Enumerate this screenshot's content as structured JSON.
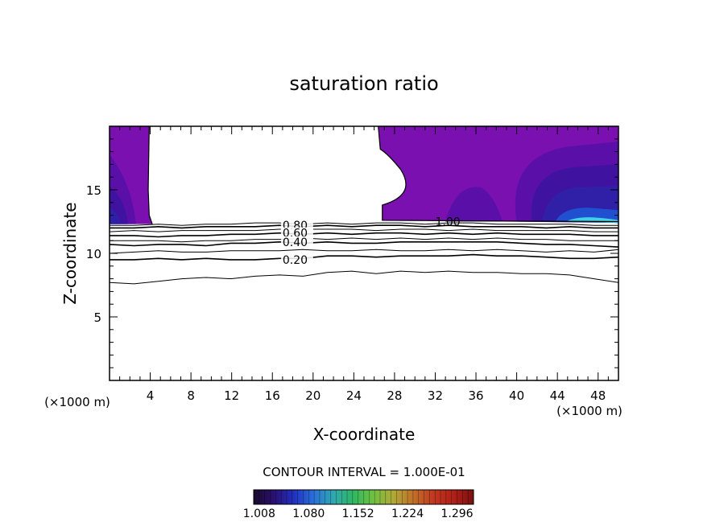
{
  "chart_data": {
    "type": "contour",
    "title": "saturation ratio",
    "xlabel": "X-coordinate",
    "ylabel": "Z-coordinate",
    "x_unit_label": "(×1000 m)",
    "x_unit_label_corner": "(×1000 m)",
    "xlim": [
      0,
      50
    ],
    "ylim": [
      0,
      20
    ],
    "x_ticks": [
      4,
      8,
      12,
      16,
      20,
      24,
      28,
      32,
      36,
      40,
      44,
      48
    ],
    "y_ticks": [
      5,
      10,
      15
    ],
    "contour_interval_text": "CONTOUR INTERVAL = 1.000E-01",
    "contour_labels": [
      {
        "text": "0.80",
        "x": 17,
        "z": 12.2
      },
      {
        "text": "0.60",
        "x": 17,
        "z": 11.6
      },
      {
        "text": "0.40",
        "x": 17,
        "z": 10.9
      },
      {
        "text": "0.20",
        "x": 17,
        "z": 9.5
      },
      {
        "text": "1.00",
        "x": 32,
        "z": 12.5
      }
    ],
    "contour_lines": [
      {
        "level": 0.1,
        "z": [
          7.7,
          7.6,
          7.8,
          8.0,
          8.1,
          8.0,
          8.2,
          8.3,
          8.2,
          8.5,
          8.6,
          8.4,
          8.6,
          8.5,
          8.6,
          8.5,
          8.5,
          8.4,
          8.4,
          8.3,
          8.0,
          7.7
        ]
      },
      {
        "level": 0.2,
        "z": [
          9.5,
          9.5,
          9.6,
          9.5,
          9.6,
          9.5,
          9.5,
          9.6,
          9.6,
          9.8,
          9.8,
          9.7,
          9.8,
          9.8,
          9.8,
          9.9,
          9.8,
          9.8,
          9.7,
          9.6,
          9.6,
          9.7
        ]
      },
      {
        "level": 0.3,
        "z": [
          10.0,
          10.1,
          10.2,
          10.1,
          10.1,
          10.2,
          10.2,
          10.2,
          10.3,
          10.2,
          10.2,
          10.3,
          10.2,
          10.2,
          10.3,
          10.2,
          10.3,
          10.2,
          10.1,
          10.2,
          10.1,
          10.3
        ]
      },
      {
        "level": 0.4,
        "z": [
          10.7,
          10.6,
          10.7,
          10.7,
          10.6,
          10.8,
          10.8,
          10.9,
          10.8,
          10.9,
          10.8,
          10.8,
          10.9,
          10.9,
          10.9,
          10.9,
          10.9,
          10.8,
          10.7,
          10.7,
          10.6,
          10.5
        ]
      },
      {
        "level": 0.5,
        "z": [
          11.0,
          11.0,
          11.0,
          10.9,
          11.0,
          11.0,
          11.1,
          11.1,
          11.2,
          11.1,
          11.2,
          11.1,
          11.2,
          11.1,
          11.2,
          11.1,
          11.2,
          11.1,
          11.1,
          11.0,
          11.0,
          11.0
        ]
      },
      {
        "level": 0.6,
        "z": [
          11.4,
          11.4,
          11.3,
          11.4,
          11.4,
          11.5,
          11.5,
          11.6,
          11.5,
          11.6,
          11.5,
          11.6,
          11.6,
          11.5,
          11.6,
          11.5,
          11.6,
          11.5,
          11.5,
          11.5,
          11.4,
          11.4
        ]
      },
      {
        "level": 0.7,
        "z": [
          11.7,
          11.8,
          11.7,
          11.8,
          11.8,
          11.8,
          11.8,
          11.9,
          11.9,
          11.9,
          11.9,
          11.8,
          11.9,
          11.9,
          11.8,
          11.9,
          11.8,
          11.8,
          11.8,
          11.8,
          11.7,
          11.7
        ]
      },
      {
        "level": 0.8,
        "z": [
          12.0,
          12.0,
          12.1,
          12.0,
          12.1,
          12.1,
          12.1,
          12.2,
          12.1,
          12.2,
          12.1,
          12.2,
          12.2,
          12.1,
          12.2,
          12.1,
          12.1,
          12.1,
          12.0,
          12.1,
          12.0,
          12.0
        ]
      },
      {
        "level": 0.9,
        "z": [
          12.2,
          12.2,
          12.3,
          12.2,
          12.3,
          12.3,
          12.4,
          12.4,
          12.3,
          12.4,
          12.3,
          12.4,
          12.4,
          12.3,
          12.4,
          12.4,
          12.3,
          12.3,
          12.3,
          12.3,
          12.2,
          12.2
        ]
      }
    ],
    "contour_x": [
      0,
      2.4,
      4.8,
      7.1,
      9.5,
      11.9,
      14.3,
      16.7,
      19.0,
      21.4,
      23.8,
      26.2,
      28.6,
      31.0,
      33.3,
      35.7,
      38.1,
      40.5,
      42.9,
      45.2,
      47.6,
      50
    ],
    "colorbar": {
      "tick_labels": [
        "1.008",
        "1.080",
        "1.152",
        "1.224",
        "1.296"
      ],
      "range": [
        1.0,
        1.32
      ],
      "colors": [
        "#1a0a2a",
        "#2a1070",
        "#2030c0",
        "#2a70d8",
        "#30a8b0",
        "#30b860",
        "#70c040",
        "#b0a838",
        "#c07028",
        "#c03820",
        "#b02018",
        "#7a1010"
      ]
    },
    "fill_colors": {
      "supersaturated_base": "#7a10b0",
      "deep": "#5a10a8",
      "mid": "#4012a0",
      "strong": "#3020a8",
      "core": "#2050d0",
      "peak": "#40d0e8"
    }
  }
}
